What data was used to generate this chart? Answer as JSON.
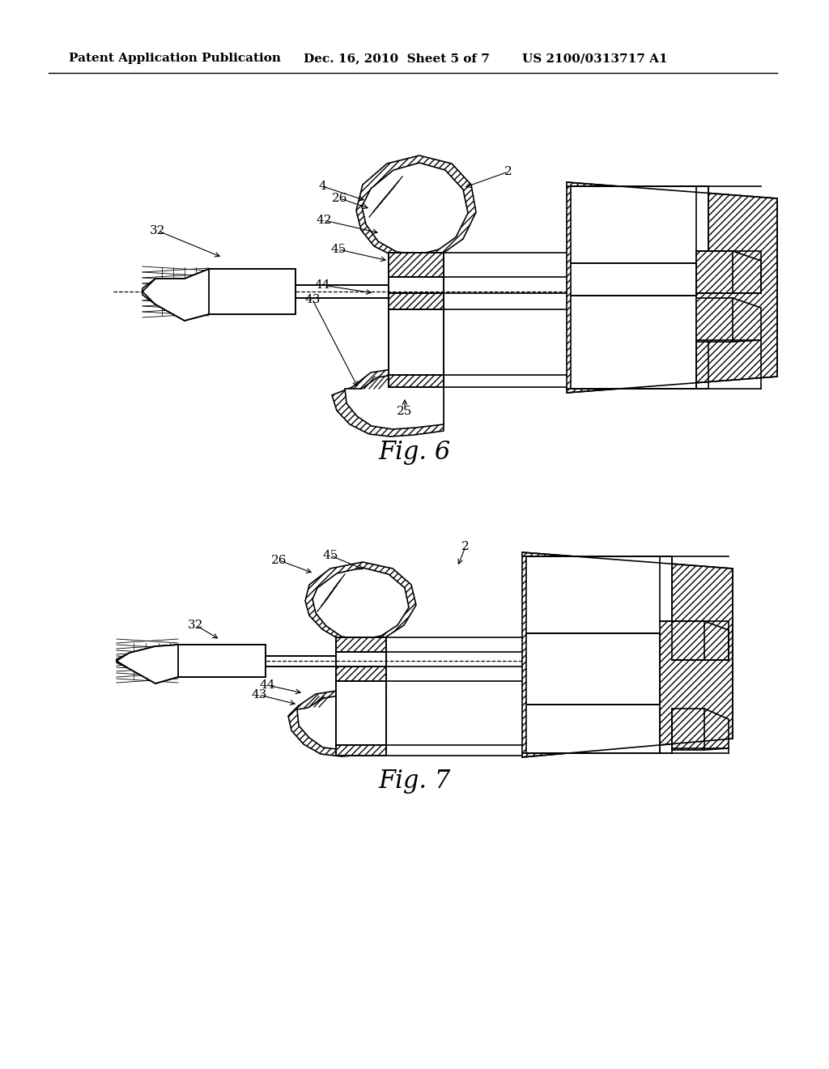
{
  "bg_color": "#ffffff",
  "line_color": "#000000",
  "header_left": "Patent Application Publication",
  "header_mid": "Dec. 16, 2010  Sheet 5 of 7",
  "header_right": "US 2100/0313717 A1",
  "fig6_label": "Fig. 6",
  "fig7_label": "Fig. 7"
}
